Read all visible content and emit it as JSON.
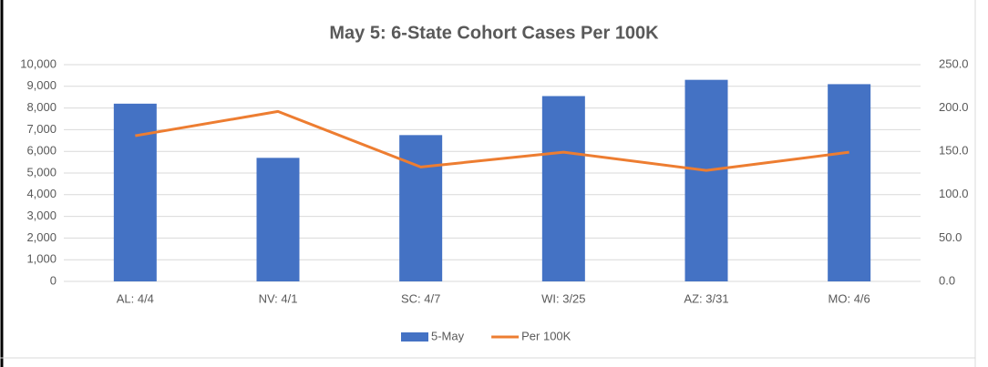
{
  "chart_data": {
    "type": "combo",
    "title": "May 5: 6-State Cohort Cases Per 100K",
    "categories": [
      "AL: 4/4",
      "NV: 4/1",
      "SC: 4/7",
      "WI: 3/25",
      "AZ: 3/31",
      "MO: 4/6"
    ],
    "series": [
      {
        "name": "5-May",
        "type": "bar",
        "color": "#4472c4",
        "values": [
          8200,
          5700,
          6750,
          8550,
          9300,
          9100
        ]
      },
      {
        "name": "Per 100K",
        "type": "line",
        "axis": "y2",
        "color": "#ed7d31",
        "values": [
          168,
          196,
          132,
          149,
          128,
          149
        ]
      }
    ],
    "ylim": [
      0,
      10000
    ],
    "yticks": [
      0,
      {
        "value": 1000,
        "label": "1,000"
      },
      {
        "value": 2000,
        "label": "2,000"
      },
      {
        "value": 3000,
        "label": "3,000"
      },
      {
        "value": 4000,
        "label": "4,000"
      },
      {
        "value": 5000,
        "label": "5,000"
      },
      {
        "value": 6000,
        "label": "6,000"
      },
      {
        "value": 7000,
        "label": "7,000"
      },
      {
        "value": 8000,
        "label": "8,000"
      },
      {
        "value": 9000,
        "label": "9,000"
      },
      {
        "value": 10000,
        "label": "10,000"
      }
    ],
    "y2lim": [
      0,
      250
    ],
    "y2ticks": [
      {
        "value": 0,
        "label": "0.0"
      },
      {
        "value": 50,
        "label": "50.0"
      },
      {
        "value": 100,
        "label": "100.0"
      },
      {
        "value": 150,
        "label": "150.0"
      },
      {
        "value": 200,
        "label": "200.0"
      },
      {
        "value": 250,
        "label": "250.0"
      }
    ],
    "grid": true,
    "legend": "bottom"
  }
}
